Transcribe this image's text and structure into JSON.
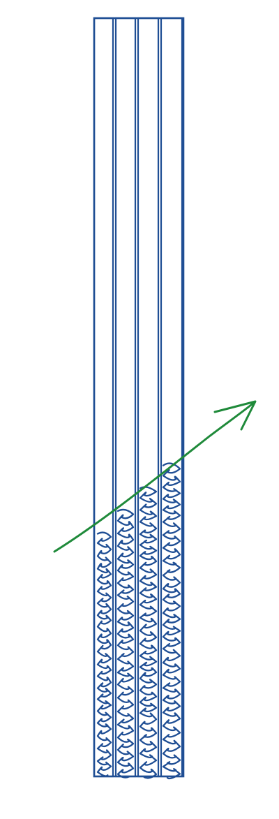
{
  "diagram": {
    "columns": [
      {
        "fill_level": 0.32
      },
      {
        "fill_level": 0.35
      },
      {
        "fill_level": 0.38
      },
      {
        "fill_level": 0.41
      }
    ],
    "colors": {
      "background": "#ffffff",
      "outline": "#1f4e94",
      "scribble": "#1f4e94",
      "arrow": "#1f8a3a"
    },
    "icons": {
      "arrow": "trend-arrow-icon",
      "scribble": "scribble-fill-icon"
    }
  }
}
